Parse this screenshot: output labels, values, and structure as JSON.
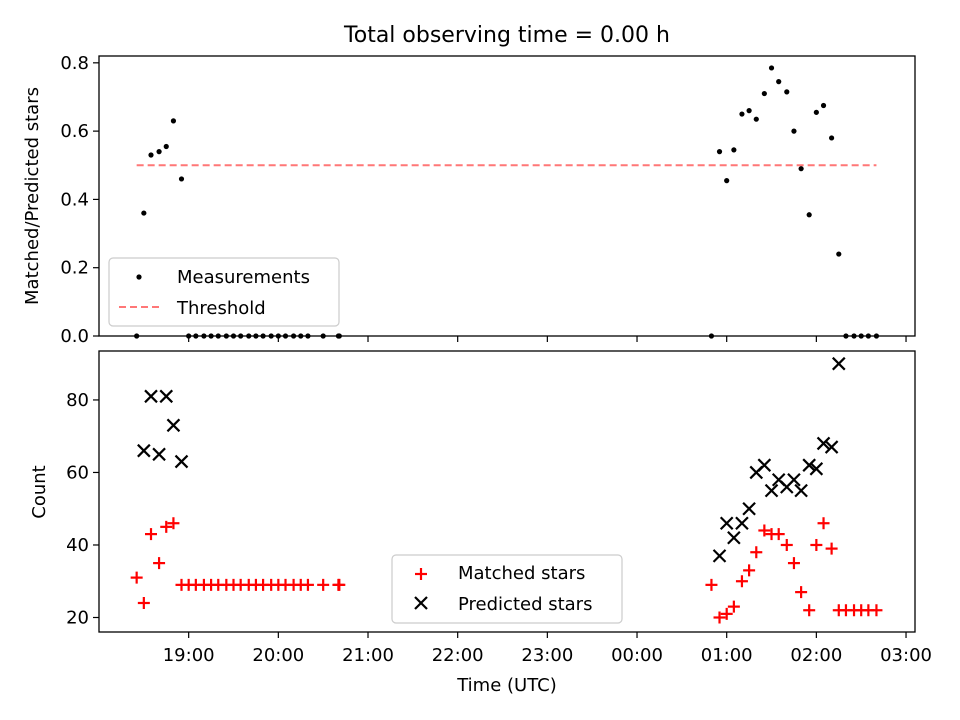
{
  "figure": {
    "title": "Total observing time = 0.00 h"
  },
  "chart_data": [
    {
      "type": "scatter",
      "ylabel": "Matched/Predicted stars",
      "xlabel": "",
      "xlim_hours": [
        18.0,
        27.1
      ],
      "ylim": [
        0,
        0.82
      ],
      "yticks": [
        0.0,
        0.2,
        0.4,
        0.6,
        0.8
      ],
      "ytick_labels": [
        "0.0",
        "0.2",
        "0.4",
        "0.6",
        "0.8"
      ],
      "legend_position": "lower-left",
      "threshold": {
        "name": "Threshold",
        "value": 0.5,
        "x_range_hours": [
          18.42,
          26.67
        ],
        "color": "#ff7777"
      },
      "series": [
        {
          "name": "Measurements",
          "marker": "dot",
          "color": "#000000",
          "x_hours": [
            18.42,
            18.5,
            18.58,
            18.67,
            18.75,
            18.83,
            18.92,
            19.0,
            19.08,
            19.17,
            19.25,
            19.33,
            19.42,
            19.5,
            19.58,
            19.67,
            19.75,
            19.83,
            19.92,
            20.0,
            20.08,
            20.17,
            20.25,
            20.33,
            20.5,
            20.67,
            20.68,
            24.83,
            24.92,
            25.0,
            25.08,
            25.17,
            25.25,
            25.33,
            25.42,
            25.5,
            25.58,
            25.67,
            25.75,
            25.83,
            25.92,
            26.0,
            26.08,
            26.17,
            26.25,
            26.33,
            26.42,
            26.5,
            26.58,
            26.67
          ],
          "values": [
            0.0,
            0.36,
            0.53,
            0.54,
            0.555,
            0.63,
            0.46,
            0.0,
            0.0,
            0.0,
            0.0,
            0.0,
            0.0,
            0.0,
            0.0,
            0.0,
            0.0,
            0.0,
            0.0,
            0.0,
            0.0,
            0.0,
            0.0,
            0.0,
            0.0,
            0.0,
            0.0,
            0.0,
            0.54,
            0.455,
            0.545,
            0.65,
            0.66,
            0.635,
            0.71,
            0.785,
            0.745,
            0.715,
            0.6,
            0.49,
            0.355,
            0.655,
            0.675,
            0.58,
            0.24,
            0.0,
            0.0,
            0.0,
            0.0,
            0.0
          ]
        }
      ]
    },
    {
      "type": "scatter",
      "ylabel": "Count",
      "xlabel": "Time (UTC)",
      "xlim_hours": [
        18.0,
        27.1
      ],
      "ylim": [
        16,
        93.5
      ],
      "yticks": [
        20,
        40,
        60,
        80
      ],
      "ytick_labels": [
        "20",
        "40",
        "60",
        "80"
      ],
      "xtick_hours": [
        19,
        20,
        21,
        22,
        23,
        24,
        25,
        26,
        27
      ],
      "xtick_labels": [
        "19:00",
        "20:00",
        "21:00",
        "22:00",
        "23:00",
        "00:00",
        "01:00",
        "02:00",
        "03:00"
      ],
      "legend_position": "lower-center",
      "series": [
        {
          "name": "Matched stars",
          "marker": "plus",
          "color": "#ff0000",
          "x_hours": [
            18.42,
            18.5,
            18.58,
            18.67,
            18.75,
            18.83,
            18.92,
            19.0,
            19.08,
            19.17,
            19.25,
            19.33,
            19.42,
            19.5,
            19.58,
            19.67,
            19.75,
            19.83,
            19.92,
            20.0,
            20.08,
            20.17,
            20.25,
            20.33,
            20.5,
            20.67,
            20.68,
            24.83,
            24.92,
            25.0,
            25.08,
            25.17,
            25.25,
            25.33,
            25.42,
            25.5,
            25.58,
            25.67,
            25.75,
            25.83,
            25.92,
            26.0,
            26.08,
            26.17,
            26.25,
            26.33,
            26.42,
            26.5,
            26.58,
            26.67
          ],
          "values": [
            31,
            24,
            43,
            35,
            45,
            46,
            29,
            29,
            29,
            29,
            29,
            29,
            29,
            29,
            29,
            29,
            29,
            29,
            29,
            29,
            29,
            29,
            29,
            29,
            29,
            29,
            29,
            29,
            20,
            21,
            23,
            30,
            33,
            38,
            44,
            43,
            43,
            40,
            35,
            27,
            22,
            40,
            46,
            39,
            22,
            22,
            22,
            22,
            22,
            22
          ]
        },
        {
          "name": "Predicted stars",
          "marker": "x",
          "color": "#000000",
          "x_hours": [
            18.5,
            18.58,
            18.67,
            18.75,
            18.83,
            18.92,
            24.92,
            25.0,
            25.08,
            25.17,
            25.25,
            25.33,
            25.42,
            25.5,
            25.58,
            25.67,
            25.75,
            25.83,
            25.92,
            26.0,
            26.08,
            26.17,
            26.25
          ],
          "values": [
            66,
            81,
            65,
            81,
            73,
            63,
            37,
            46,
            42,
            46,
            50,
            60,
            62,
            55,
            58,
            56,
            58,
            55,
            62,
            61,
            68,
            67,
            90
          ]
        }
      ]
    }
  ]
}
